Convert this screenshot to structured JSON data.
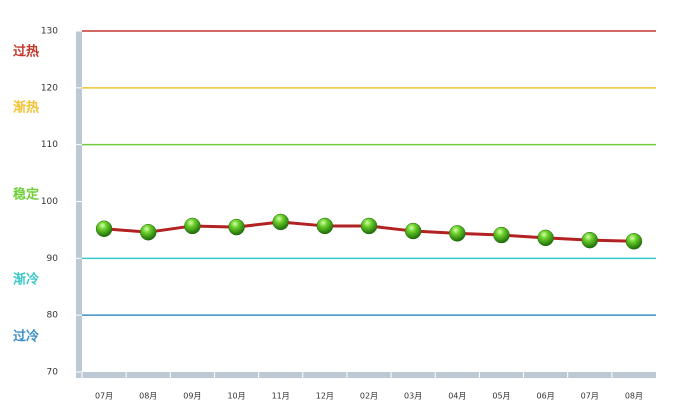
{
  "chart_data": {
    "type": "line",
    "categories": [
      "07月",
      "08月",
      "09月",
      "10月",
      "11月",
      "12月",
      "02月",
      "03月",
      "04月",
      "05月",
      "06月",
      "07月",
      "08月"
    ],
    "series": [
      {
        "color": "#b22222",
        "values": [
          95.2,
          94.6,
          95.7,
          95.5,
          96.4,
          95.7,
          95.7,
          94.8,
          94.4,
          94.1,
          93.6,
          93.2,
          93.0
        ]
      }
    ],
    "ylim": [
      70,
      130
    ],
    "yticks": [
      70,
      80,
      90,
      100,
      110,
      120,
      130
    ],
    "reference_lines": [
      {
        "value": 130,
        "color": "#c0392b"
      },
      {
        "value": 120,
        "color": "#f2c230"
      },
      {
        "value": 110,
        "color": "#6fcf3a"
      },
      {
        "value": 90,
        "color": "#3cc8c8"
      },
      {
        "value": 80,
        "color": "#3b8fc8"
      }
    ],
    "zone_labels": [
      {
        "label": "过热",
        "color": "#c0392b"
      },
      {
        "label": "渐热",
        "color": "#f2c230"
      },
      {
        "label": "稳定",
        "color": "#6fcf3a"
      },
      {
        "label": "渐冷",
        "color": "#3cc8c8"
      },
      {
        "label": "过冷",
        "color": "#3b8fc8"
      }
    ]
  }
}
